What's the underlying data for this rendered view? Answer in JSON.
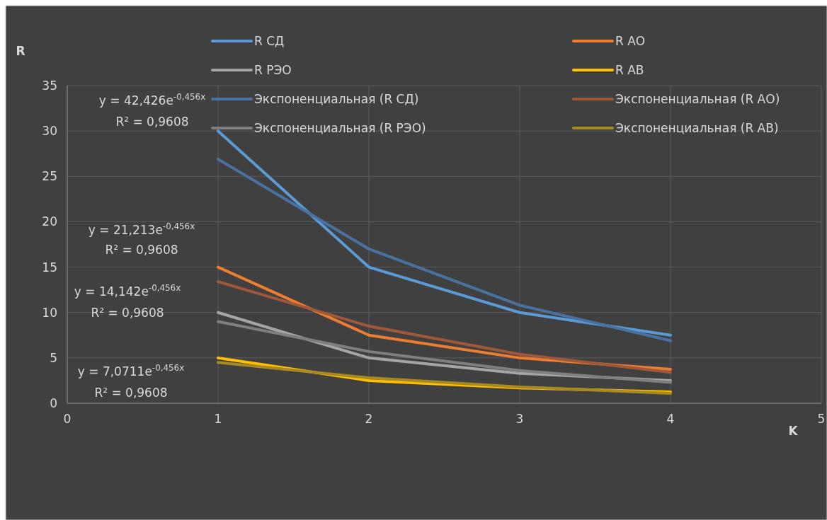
{
  "chart_data": {
    "type": "line",
    "xlabel": "K",
    "ylabel": "R",
    "xlim": [
      0,
      5
    ],
    "xticks": [
      0,
      1,
      2,
      3,
      4,
      5
    ],
    "ylim": [
      0,
      35
    ],
    "yticks": [
      0,
      5,
      10,
      15,
      20,
      25,
      30,
      35
    ],
    "grid": true,
    "legend": "top",
    "x": [
      1,
      2,
      3,
      4
    ],
    "series": [
      {
        "name": "R СД",
        "color": "#5b9bd5",
        "values": [
          30,
          15,
          10,
          7.5
        ]
      },
      {
        "name": "R АО",
        "color": "#ed7d31",
        "values": [
          15,
          7.5,
          5,
          3.75
        ]
      },
      {
        "name": "R РЭО",
        "color": "#a5a5a5",
        "values": [
          10,
          5,
          3.3,
          2.5
        ]
      },
      {
        "name": "R АВ",
        "color": "#ffc000",
        "values": [
          5,
          2.5,
          1.7,
          1.25
        ]
      },
      {
        "name": "Экспоненциальная (R СД)",
        "color": "#4a72a0",
        "values": [
          26.9,
          17.0,
          10.8,
          6.9
        ]
      },
      {
        "name": "Экспоненциальная (R АО)",
        "color": "#a0583a",
        "values": [
          13.4,
          8.5,
          5.4,
          3.4
        ]
      },
      {
        "name": "Экспоненциальная (R РЭО)",
        "color": "#7f7f7f",
        "values": [
          9.0,
          5.7,
          3.6,
          2.3
        ]
      },
      {
        "name": "Экспоненциальная (R АВ)",
        "color": "#a88a22",
        "values": [
          4.5,
          2.8,
          1.8,
          1.1
        ]
      }
    ],
    "annotations": [
      "y = 42,426e$^{-0,456x}$",
      "R² = 0,9608",
      "y = 21,213e$^{-0,456x}$",
      "R² = 0,9608",
      "y = 14,142e$^{-0,456x}$",
      "R² = 0,9608",
      "y = 7,0711e$^{-0,456x}$",
      "R² = 0,9608"
    ]
  }
}
